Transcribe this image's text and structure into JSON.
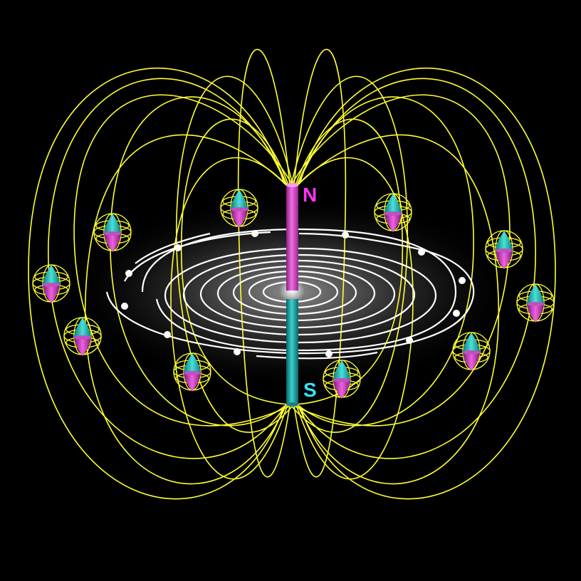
{
  "labels": {
    "north": "N",
    "south": "S"
  },
  "colors": {
    "background": "#000000",
    "field_lines": "#ffff33",
    "swirl_lines": "#ffffff",
    "north_pole": "#e040d0",
    "south_pole": "#1fa6a6",
    "north_label": "#ff33ff",
    "south_label": "#33e5ff"
  },
  "icons": {
    "particle": "spinning-particle-icon",
    "arrow": "arrow-dot-icon"
  }
}
